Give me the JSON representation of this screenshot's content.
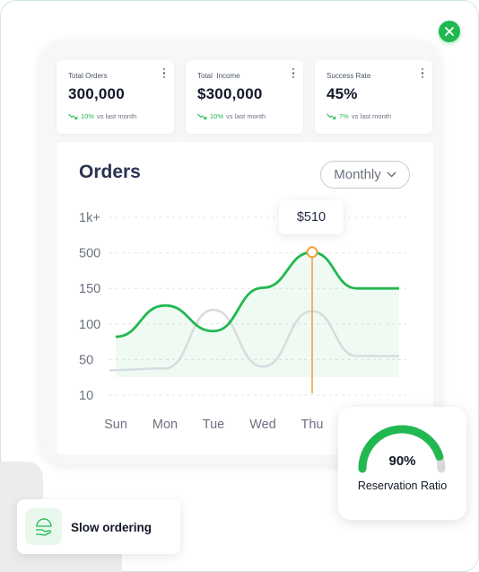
{
  "stats": [
    {
      "label": "Total Orders",
      "value": "300,000",
      "change": "10%",
      "suffix": "vs last month"
    },
    {
      "label": "Total  Income",
      "value": "$300,000",
      "change": "10%",
      "suffix": "vs last month"
    },
    {
      "label": "Success Rate",
      "value": "45%",
      "change": "7%",
      "suffix": "vs last month"
    }
  ],
  "chart": {
    "title": "Orders",
    "period": "Monthly",
    "tooltip": "$510",
    "highlight_day": "Thu"
  },
  "chart_data": {
    "type": "line",
    "title": "Orders",
    "x": [
      "Sun",
      "Mon",
      "Tue",
      "Wed",
      "Thu"
    ],
    "y_tick_labels": [
      "1k+",
      "500",
      "150",
      "100",
      "50",
      "10"
    ],
    "grid": true,
    "series": [
      {
        "color": "#22b851",
        "fill": true,
        "values": [
          82,
          126,
          90,
          156,
          510
        ]
      },
      {
        "color": "#d8dbe0",
        "fill": false,
        "values": [
          38,
          40,
          120,
          42,
          118
        ]
      }
    ],
    "highlight": {
      "x": "Thu",
      "value": 510,
      "label": "$510"
    }
  },
  "ratio": {
    "value": "90%",
    "label": "Reservation Ratio",
    "percent": 90
  },
  "slow": {
    "label": "Slow ordering"
  },
  "colors": {
    "accent": "#22b851",
    "highlight": "#f29d38",
    "title": "#2b3350"
  },
  "icons": [
    "close-icon",
    "more-vertical-icon",
    "trend-icon",
    "chevron-down-icon",
    "serving-hand-icon"
  ]
}
